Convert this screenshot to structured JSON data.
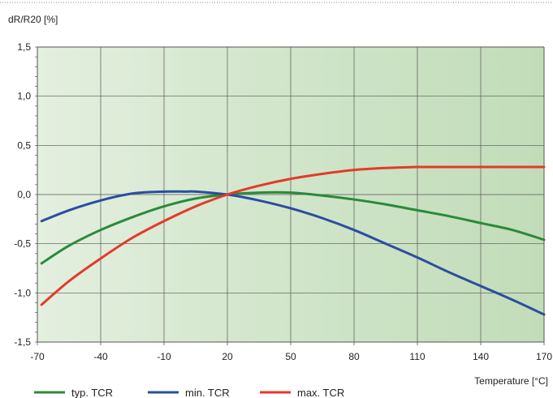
{
  "chart_data": {
    "type": "line",
    "ylabel": "dR/R20 [%]",
    "xlabel": "Temperature [°C]",
    "xlim": [
      -70,
      170
    ],
    "ylim": [
      -1.5,
      1.5
    ],
    "xticks": [
      "-70",
      "-40",
      "-10",
      "20",
      "50",
      "80",
      "110",
      "140",
      "170"
    ],
    "yticks": [
      "1,5",
      "1,0",
      "0,5",
      "0,0",
      "-0,5",
      "-1,0",
      "-1,5"
    ],
    "grid": true,
    "legend_position": "bottom",
    "series": [
      {
        "name": "typ. TCR",
        "color": "#2a8a3a",
        "x": [
          -68,
          -55,
          -40,
          -25,
          -10,
          5,
          20,
          35,
          50,
          65,
          80,
          95,
          110,
          125,
          140,
          155,
          170
        ],
        "y": [
          -0.7,
          -0.52,
          -0.36,
          -0.23,
          -0.12,
          -0.04,
          0.0,
          0.02,
          0.02,
          -0.01,
          -0.05,
          -0.1,
          -0.16,
          -0.22,
          -0.29,
          -0.36,
          -0.46
        ]
      },
      {
        "name": "min. TCR",
        "color": "#2b4da0",
        "x": [
          -68,
          -55,
          -40,
          -25,
          -10,
          0,
          5,
          20,
          35,
          50,
          65,
          80,
          95,
          110,
          125,
          140,
          155,
          170
        ],
        "y": [
          -0.27,
          -0.16,
          -0.06,
          0.01,
          0.03,
          0.03,
          0.03,
          0.0,
          -0.06,
          -0.14,
          -0.24,
          -0.36,
          -0.5,
          -0.64,
          -0.79,
          -0.93,
          -1.07,
          -1.22
        ]
      },
      {
        "name": "max. TCR",
        "color": "#e33a2a",
        "x": [
          -68,
          -55,
          -40,
          -25,
          -10,
          5,
          20,
          35,
          50,
          65,
          80,
          95,
          110,
          125,
          140,
          155,
          170
        ],
        "y": [
          -1.12,
          -0.88,
          -0.65,
          -0.44,
          -0.27,
          -0.12,
          0.0,
          0.09,
          0.16,
          0.21,
          0.25,
          0.27,
          0.28,
          0.28,
          0.28,
          0.28,
          0.28
        ]
      }
    ]
  }
}
